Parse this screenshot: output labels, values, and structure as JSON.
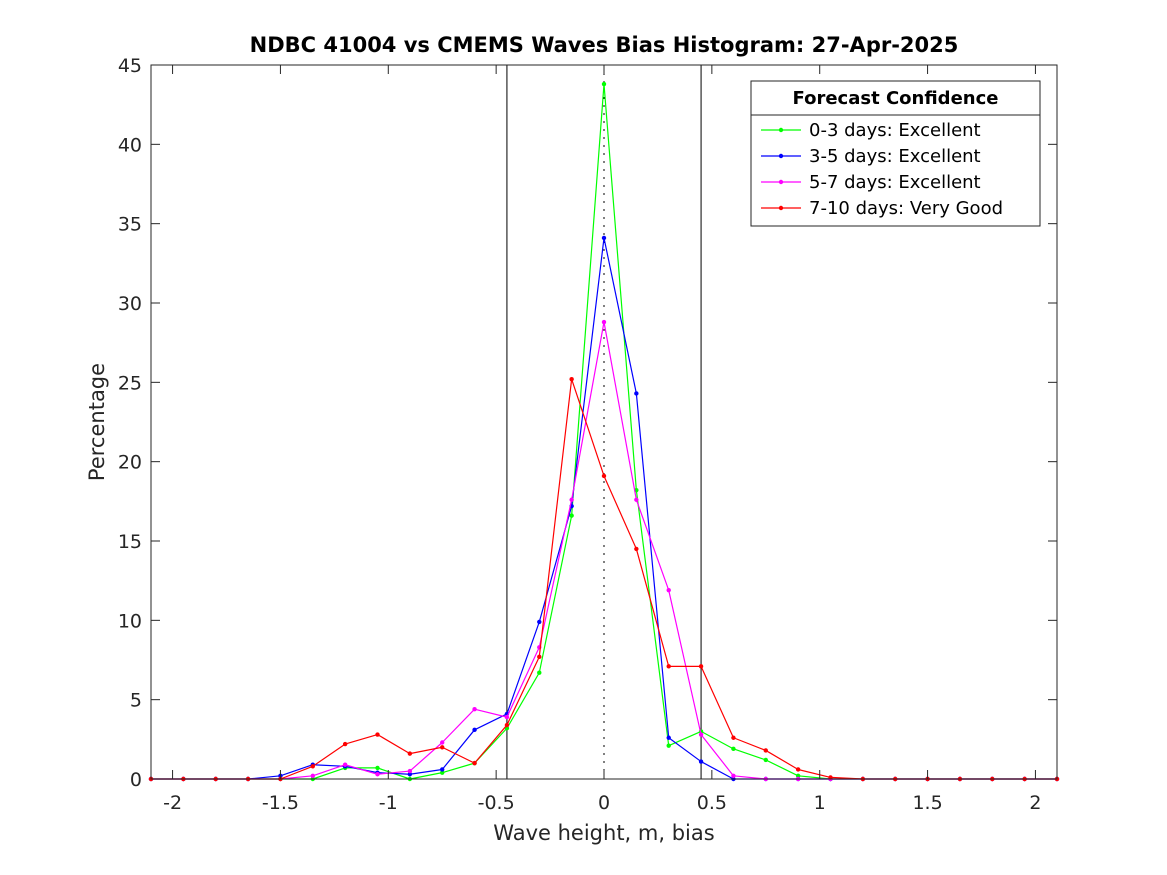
{
  "chart_data": {
    "type": "line",
    "title": "NDBC 41004 vs CMEMS Waves Bias Histogram: 27-Apr-2025",
    "xlabel": "Wave height, m, bias",
    "ylabel": "Percentage",
    "xlim": [
      -2.1,
      2.1
    ],
    "ylim": [
      0,
      45
    ],
    "xticks": [
      -2,
      -1.5,
      -1,
      -0.5,
      0,
      0.5,
      1,
      1.5,
      2
    ],
    "xtick_labels": [
      "-2",
      "-1.5",
      "-1",
      "-0.5",
      "0",
      "0.5",
      "1",
      "1.5",
      "2"
    ],
    "yticks": [
      0,
      5,
      10,
      15,
      20,
      25,
      30,
      35,
      40,
      45
    ],
    "ytick_labels": [
      "0",
      "5",
      "10",
      "15",
      "20",
      "25",
      "30",
      "35",
      "40",
      "45"
    ],
    "vertical_lines": [
      -0.45,
      0.45
    ],
    "zero_line": 0,
    "grid": false,
    "legend": {
      "title": "Forecast Confidence",
      "position": "top-right"
    },
    "x": [
      -2.1,
      -1.95,
      -1.8,
      -1.65,
      -1.5,
      -1.35,
      -1.2,
      -1.05,
      -0.9,
      -0.75,
      -0.6,
      -0.45,
      -0.3,
      -0.15,
      0,
      0.15,
      0.3,
      0.45,
      0.6,
      0.75,
      0.9,
      1.05,
      1.2,
      1.35,
      1.5,
      1.65,
      1.8,
      1.95,
      2.1
    ],
    "series": [
      {
        "name": "0-3 days: Excellent",
        "color": "#00ff00",
        "values": [
          0,
          0,
          0,
          0,
          0,
          0,
          0.7,
          0.7,
          0,
          0.4,
          1.0,
          3.2,
          6.7,
          16.6,
          43.8,
          18.2,
          2.1,
          3.0,
          1.9,
          1.2,
          0.2,
          0,
          0,
          0,
          0,
          0,
          0,
          0,
          0
        ]
      },
      {
        "name": "3-5 days: Excellent",
        "color": "#0000ff",
        "values": [
          0,
          0,
          0,
          0,
          0.2,
          0.9,
          0.8,
          0.4,
          0.3,
          0.6,
          3.1,
          4.1,
          9.9,
          17.2,
          34.1,
          24.3,
          2.6,
          1.1,
          0,
          0,
          0,
          0,
          0,
          0,
          0,
          0,
          0,
          0,
          0
        ]
      },
      {
        "name": "5-7 days: Excellent",
        "color": "#ff00ff",
        "values": [
          0,
          0,
          0,
          0,
          0,
          0.2,
          0.9,
          0.3,
          0.5,
          2.3,
          4.4,
          3.9,
          8.3,
          17.6,
          28.8,
          17.6,
          11.9,
          2.8,
          0.2,
          0,
          0,
          0,
          0,
          0,
          0,
          0,
          0,
          0,
          0
        ]
      },
      {
        "name": "7-10 days: Very Good",
        "color": "#ff0000",
        "values": [
          0,
          0,
          0,
          0,
          0,
          0.8,
          2.2,
          2.8,
          1.6,
          2.0,
          1.0,
          3.4,
          7.7,
          25.2,
          19.1,
          14.5,
          7.1,
          7.1,
          2.6,
          1.8,
          0.6,
          0.1,
          0,
          0,
          0,
          0,
          0,
          0,
          0
        ]
      }
    ]
  }
}
